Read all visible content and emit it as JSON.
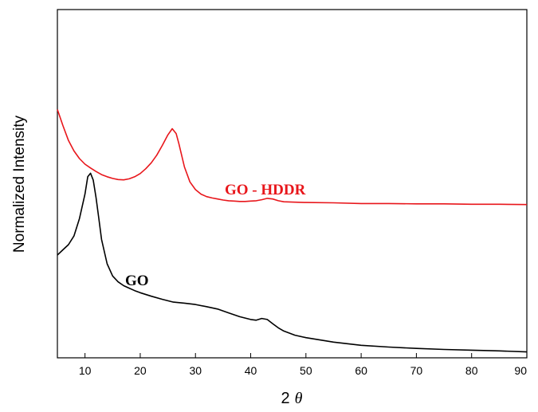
{
  "chart_data": {
    "type": "line",
    "title": "",
    "xlabel": "2 θ",
    "xlabel_parts": {
      "prefix": "2",
      "symbol": "θ"
    },
    "ylabel": "Normalized Intensity",
    "xlim": [
      5,
      90
    ],
    "ylim": [
      0,
      1
    ],
    "y_tick_labels_shown": false,
    "x_ticks": [
      10,
      20,
      30,
      40,
      50,
      60,
      70,
      80,
      90
    ],
    "x_tick_labels": [
      "10",
      "20",
      "30",
      "40",
      "50",
      "60",
      "70",
      "80",
      "90"
    ],
    "grid": false,
    "legend": "none",
    "series": [
      {
        "name": "GO - HDDR",
        "color": "#e8161b",
        "label_position": "middle-right",
        "points": [
          [
            5,
            0.713
          ],
          [
            6,
            0.667
          ],
          [
            7,
            0.624
          ],
          [
            8,
            0.594
          ],
          [
            9,
            0.572
          ],
          [
            10,
            0.556
          ],
          [
            11,
            0.545
          ],
          [
            12,
            0.535
          ],
          [
            13,
            0.526
          ],
          [
            14,
            0.52
          ],
          [
            15,
            0.515
          ],
          [
            16,
            0.512
          ],
          [
            17,
            0.511
          ],
          [
            18,
            0.514
          ],
          [
            19,
            0.52
          ],
          [
            20,
            0.529
          ],
          [
            21,
            0.543
          ],
          [
            22,
            0.56
          ],
          [
            23,
            0.582
          ],
          [
            24,
            0.61
          ],
          [
            25,
            0.64
          ],
          [
            25.8,
            0.658
          ],
          [
            26.5,
            0.644
          ],
          [
            27,
            0.615
          ],
          [
            28,
            0.548
          ],
          [
            29,
            0.505
          ],
          [
            30,
            0.483
          ],
          [
            31,
            0.47
          ],
          [
            32,
            0.463
          ],
          [
            33,
            0.459
          ],
          [
            34,
            0.456
          ],
          [
            35,
            0.453
          ],
          [
            36,
            0.451
          ],
          [
            37,
            0.45
          ],
          [
            38,
            0.449
          ],
          [
            39,
            0.449
          ],
          [
            40,
            0.45
          ],
          [
            41,
            0.451
          ],
          [
            42,
            0.454
          ],
          [
            43,
            0.458
          ],
          [
            44,
            0.456
          ],
          [
            45,
            0.451
          ],
          [
            46,
            0.448
          ],
          [
            48,
            0.447
          ],
          [
            50,
            0.446
          ],
          [
            55,
            0.445
          ],
          [
            60,
            0.443
          ],
          [
            65,
            0.443
          ],
          [
            70,
            0.442
          ],
          [
            75,
            0.442
          ],
          [
            80,
            0.441
          ],
          [
            85,
            0.441
          ],
          [
            90,
            0.44
          ]
        ]
      },
      {
        "name": "GO",
        "color": "#000000",
        "label_position": "center-left",
        "points": [
          [
            5,
            0.295
          ],
          [
            6,
            0.31
          ],
          [
            7,
            0.325
          ],
          [
            8,
            0.35
          ],
          [
            9,
            0.4
          ],
          [
            10,
            0.47
          ],
          [
            10.5,
            0.52
          ],
          [
            11,
            0.53
          ],
          [
            11.5,
            0.51
          ],
          [
            12,
            0.46
          ],
          [
            12.5,
            0.4
          ],
          [
            13,
            0.34
          ],
          [
            14,
            0.27
          ],
          [
            15,
            0.235
          ],
          [
            16,
            0.218
          ],
          [
            17,
            0.207
          ],
          [
            18,
            0.2
          ],
          [
            19,
            0.193
          ],
          [
            20,
            0.187
          ],
          [
            22,
            0.177
          ],
          [
            24,
            0.168
          ],
          [
            26,
            0.16
          ],
          [
            28,
            0.157
          ],
          [
            30,
            0.153
          ],
          [
            32,
            0.147
          ],
          [
            34,
            0.14
          ],
          [
            36,
            0.129
          ],
          [
            38,
            0.118
          ],
          [
            40,
            0.11
          ],
          [
            41,
            0.108
          ],
          [
            42,
            0.113
          ],
          [
            43,
            0.11
          ],
          [
            44,
            0.098
          ],
          [
            45,
            0.086
          ],
          [
            46,
            0.077
          ],
          [
            48,
            0.065
          ],
          [
            50,
            0.058
          ],
          [
            55,
            0.045
          ],
          [
            60,
            0.036
          ],
          [
            65,
            0.031
          ],
          [
            70,
            0.027
          ],
          [
            75,
            0.024
          ],
          [
            80,
            0.022
          ],
          [
            85,
            0.02
          ],
          [
            90,
            0.017
          ]
        ]
      }
    ]
  }
}
